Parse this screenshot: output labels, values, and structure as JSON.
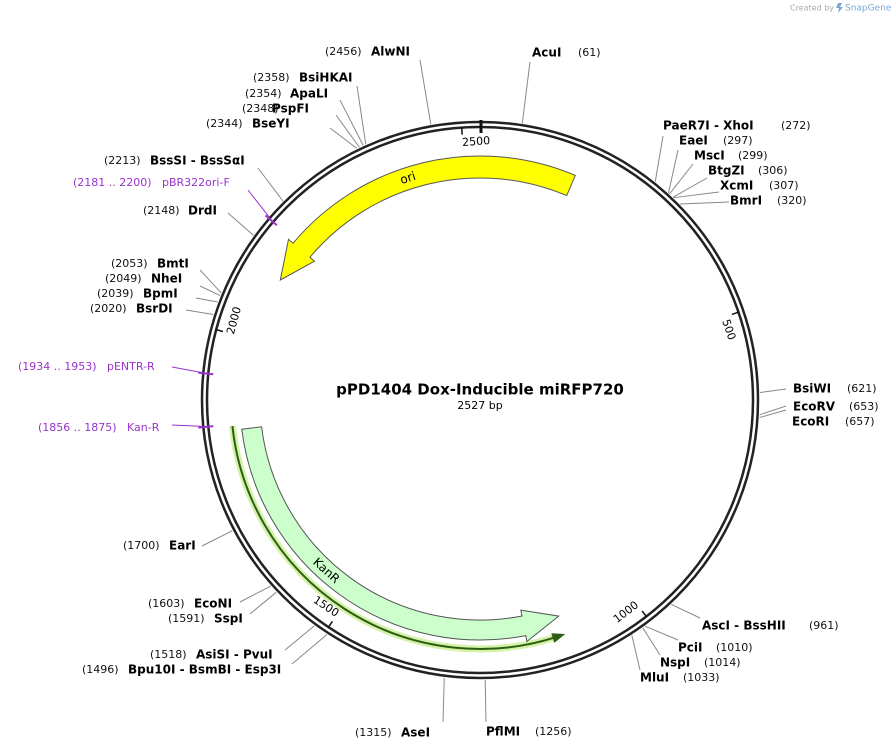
{
  "map": {
    "title": "pPD1404 Dox-Inducible miRFP720",
    "size_label": "2527 bp",
    "ticks": [
      500,
      1000,
      1500,
      2000,
      2500
    ],
    "features": [
      {
        "name": "ori",
        "color": "#ffff00"
      },
      {
        "name": "KanR",
        "color": "#ccffcc"
      }
    ],
    "sites": [
      {
        "name": "AlwNI",
        "position": "(2456)",
        "color": "#000000"
      },
      {
        "name": "AcuI",
        "position": "(61)",
        "color": "#000000"
      },
      {
        "name": "BsiHKAI",
        "position": "(2358)",
        "color": "#000000"
      },
      {
        "name": "ApaLI",
        "position": "(2354)",
        "color": "#000000"
      },
      {
        "name": "PspFI",
        "position": "(2348)",
        "color": "#000000"
      },
      {
        "name": "BseYI",
        "position": "(2344)",
        "color": "#000000"
      },
      {
        "name": "PaeR7I - XhoI",
        "position": "(272)",
        "color": "#000000"
      },
      {
        "name": "EaeI",
        "position": "(297)",
        "color": "#000000"
      },
      {
        "name": "MscI",
        "position": "(299)",
        "color": "#000000"
      },
      {
        "name": "BtgZI",
        "position": "(306)",
        "color": "#000000"
      },
      {
        "name": "XcmI",
        "position": "(307)",
        "color": "#000000"
      },
      {
        "name": "BmrI",
        "position": "(320)",
        "color": "#000000"
      },
      {
        "name": "BssSI - BssSαI",
        "position": "(2213)",
        "color": "#000000"
      },
      {
        "name": "pBR322ori-F",
        "position": "(2181 .. 2200)",
        "color": "#9933cc"
      },
      {
        "name": "DrdI",
        "position": "(2148)",
        "color": "#000000"
      },
      {
        "name": "BmtI",
        "position": "(2053)",
        "color": "#000000"
      },
      {
        "name": "NheI",
        "position": "(2049)",
        "color": "#000000"
      },
      {
        "name": "BpmI",
        "position": "(2039)",
        "color": "#000000"
      },
      {
        "name": "BsrDI",
        "position": "(2020)",
        "color": "#000000"
      },
      {
        "name": "pENTR-R",
        "position": "(1934 .. 1953)",
        "color": "#9933cc"
      },
      {
        "name": "Kan-R",
        "position": "(1856 .. 1875)",
        "color": "#9933cc"
      },
      {
        "name": "BsiWI",
        "position": "(621)",
        "color": "#000000"
      },
      {
        "name": "EcoRV",
        "position": "(653)",
        "color": "#000000"
      },
      {
        "name": "EcoRI",
        "position": "(657)",
        "color": "#000000"
      },
      {
        "name": "EarI",
        "position": "(1700)",
        "color": "#000000"
      },
      {
        "name": "EcoNI",
        "position": "(1603)",
        "color": "#000000"
      },
      {
        "name": "SspI",
        "position": "(1591)",
        "color": "#000000"
      },
      {
        "name": "AsiSI - PvuI",
        "position": "(1518)",
        "color": "#000000"
      },
      {
        "name": "Bpu10I - BsmBI - Esp3I",
        "position": "(1496)",
        "color": "#000000"
      },
      {
        "name": "AseI",
        "position": "(1315)",
        "color": "#000000"
      },
      {
        "name": "PflMI",
        "position": "(1256)",
        "color": "#000000"
      },
      {
        "name": "AscI - BssHII",
        "position": "(961)",
        "color": "#000000"
      },
      {
        "name": "PciI",
        "position": "(1010)",
        "color": "#000000"
      },
      {
        "name": "NspI",
        "position": "(1014)",
        "color": "#000000"
      },
      {
        "name": "MluI",
        "position": "(1033)",
        "color": "#000000"
      }
    ]
  },
  "credit": {
    "prefix": "Created by",
    "brand": "SnapGene"
  }
}
